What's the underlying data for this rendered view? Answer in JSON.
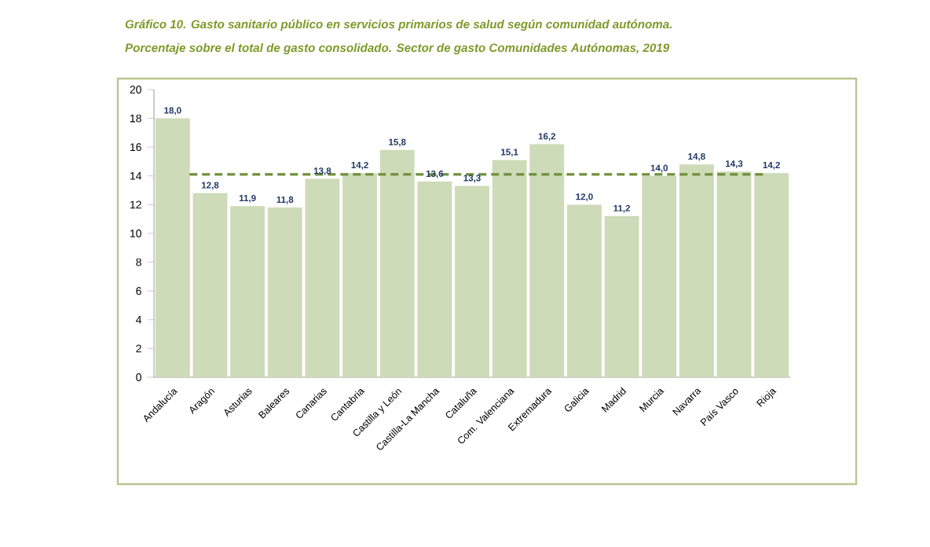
{
  "chart_data": {
    "type": "bar",
    "title": "Gráfico 10. Gasto sanitario público en servicios primarios de salud según comunidad autónoma.",
    "subtitle": "Porcentaje sobre el total de gasto consolidado. Sector de gasto Comunidades Autónomas, 2019",
    "categories": [
      "Andalucía",
      "Aragón",
      "Asturias",
      "Baleares",
      "Canarias",
      "Cantabria",
      "Castilla y León",
      "Castilla-La Mancha",
      "Cataluña",
      "Com. Valenciana",
      "Extremadura",
      "Galicia",
      "Madrid",
      "Murcia",
      "Navarra",
      "País Vasco",
      "Rioja"
    ],
    "values": [
      18.0,
      12.8,
      11.9,
      11.8,
      13.8,
      14.2,
      15.8,
      13.6,
      13.3,
      15.1,
      16.2,
      12.0,
      11.2,
      14.0,
      14.8,
      14.3,
      14.2
    ],
    "value_labels": [
      "18,0",
      "12,8",
      "11,9",
      "11,8",
      "13,8",
      "14,2",
      "15,8",
      "13,6",
      "13,3",
      "15,1",
      "16,2",
      "12,0",
      "11,2",
      "14,0",
      "14,8",
      "14,3",
      "14,2"
    ],
    "color": "#cddbb8",
    "ylim": [
      0,
      20
    ],
    "yticks": [
      0,
      2,
      4,
      6,
      8,
      10,
      12,
      14,
      16,
      18,
      20
    ],
    "ref_lines": [
      {
        "axis": "y",
        "value": 14.1,
        "color": "#6f8f3a",
        "line_style": "dashed"
      }
    ],
    "grid": false
  }
}
